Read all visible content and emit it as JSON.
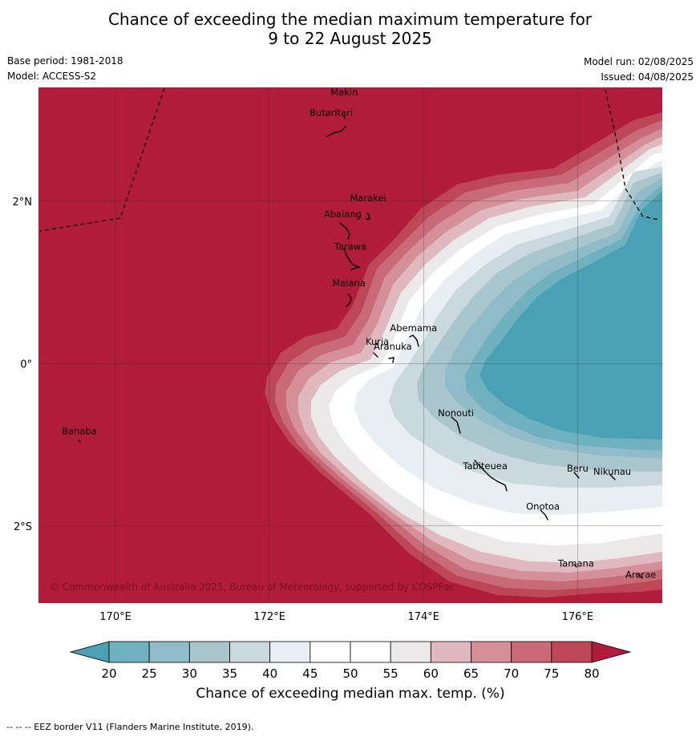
{
  "title": {
    "line1": "Chance of exceeding the median maximum temperature for",
    "line2": "9 to 22 August 2025"
  },
  "meta": {
    "base_period": "Base period: 1981-2018",
    "model": "Model: ACCESS-S2",
    "model_run": "Model run: 02/08/2025",
    "issued": "Issued: 04/08/2025"
  },
  "map": {
    "lon_range": [
      169.0,
      177.1
    ],
    "lat_range": [
      -2.95,
      3.4
    ],
    "lon_ticks": [
      {
        "value": 170,
        "label": "170°E"
      },
      {
        "value": 172,
        "label": "172°E"
      },
      {
        "value": 174,
        "label": "174°E"
      },
      {
        "value": 176,
        "label": "176°E"
      }
    ],
    "lat_ticks": [
      {
        "value": 2,
        "label": "2°N"
      },
      {
        "value": 0,
        "label": "0°"
      },
      {
        "value": -2,
        "label": "2°S"
      }
    ],
    "places": [
      {
        "name": "Makin",
        "lon": 172.97,
        "lat": 3.3
      },
      {
        "name": "Butaritari",
        "lon": 172.8,
        "lat": 3.05
      },
      {
        "name": "Marakei",
        "lon": 173.28,
        "lat": 2.0
      },
      {
        "name": "Abaiang",
        "lon": 172.95,
        "lat": 1.8
      },
      {
        "name": "Tarawa",
        "lon": 173.05,
        "lat": 1.4
      },
      {
        "name": "Maiana",
        "lon": 173.03,
        "lat": 0.95
      },
      {
        "name": "Abemama",
        "lon": 173.87,
        "lat": 0.4
      },
      {
        "name": "Kuria",
        "lon": 173.4,
        "lat": 0.23
      },
      {
        "name": "Aranuka",
        "lon": 173.6,
        "lat": 0.17
      },
      {
        "name": "Nonouti",
        "lon": 174.42,
        "lat": -0.65
      },
      {
        "name": "Banaba",
        "lon": 169.53,
        "lat": -0.87
      },
      {
        "name": "Beru",
        "lon": 176.0,
        "lat": -1.33
      },
      {
        "name": "Tabiteuea",
        "lon": 174.8,
        "lat": -1.3
      },
      {
        "name": "Nikunau",
        "lon": 176.45,
        "lat": -1.37
      },
      {
        "name": "Onotoa",
        "lon": 175.55,
        "lat": -1.8
      },
      {
        "name": "Tamana",
        "lon": 175.98,
        "lat": -2.5
      },
      {
        "name": "Arorae",
        "lon": 176.82,
        "lat": -2.64
      }
    ],
    "copyright": "© Commonwealth of Australia 2025, Bureau of Meteorology, supported by COSPPac"
  },
  "legend": {
    "levels": [
      "20",
      "25",
      "30",
      "35",
      "40",
      "45",
      "50",
      "55",
      "60",
      "65",
      "70",
      "75",
      "80"
    ],
    "below_color": "#4aa1b3",
    "above_color": "#b01c3a",
    "colors": [
      "#6fb1bf",
      "#8fbcc8",
      "#a9c6cd",
      "#c9d9de",
      "#e8eef1",
      "#ffffff",
      "#ffffff",
      "#ece9ea",
      "#e0b8bf",
      "#d58f99",
      "#c86a78",
      "#bd4657"
    ],
    "label": "Chance of exceeding median max. temp. (%)"
  },
  "footer": "-- -- -- EEZ border V11 (Flanders Marine Institute, 2019)."
}
